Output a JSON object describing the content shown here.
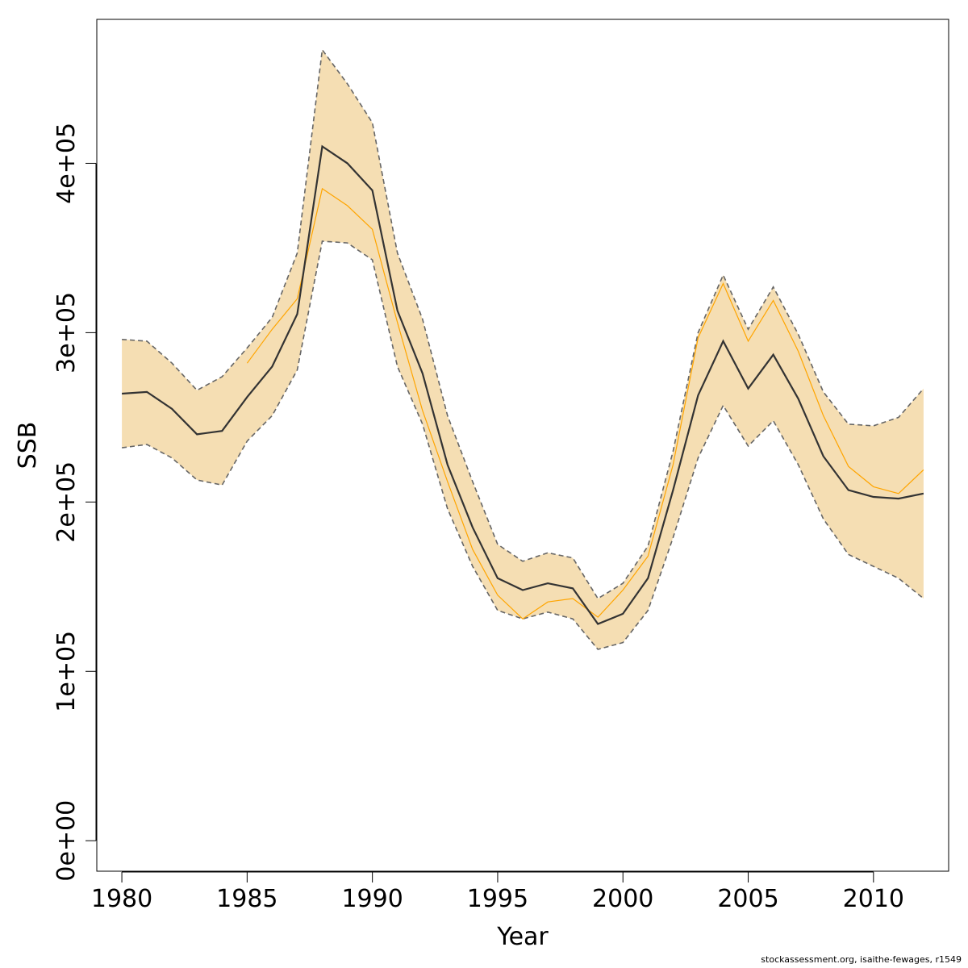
{
  "chart_data": {
    "type": "line",
    "title": "",
    "xlabel": "Year",
    "ylabel": "SSB",
    "xlim": [
      1979,
      2013
    ],
    "ylim": [
      -18000,
      485000
    ],
    "x_ticks": [
      1980,
      1985,
      1990,
      1995,
      2000,
      2005,
      2010
    ],
    "y_ticks": [
      0,
      100000,
      200000,
      300000,
      400000
    ],
    "y_tick_labels": [
      "0e+00",
      "1e+05",
      "2e+05",
      "3e+05",
      "4e+05"
    ],
    "grid": false,
    "years": [
      1980,
      1981,
      1982,
      1983,
      1984,
      1985,
      1986,
      1987,
      1988,
      1989,
      1990,
      1991,
      1992,
      1993,
      1994,
      1995,
      1996,
      1997,
      1998,
      1999,
      2000,
      2001,
      2002,
      2003,
      2004,
      2005,
      2006,
      2007,
      2008,
      2009,
      2010,
      2011,
      2012
    ],
    "series": [
      {
        "role": "estimate",
        "color": "#333333",
        "values": [
          264000,
          265000,
          255000,
          240000,
          242000,
          262000,
          280000,
          311000,
          410000,
          400000,
          384000,
          313000,
          276000,
          222000,
          185000,
          155000,
          148000,
          152000,
          149000,
          128000,
          134000,
          155000,
          207000,
          263000,
          295000,
          267000,
          287000,
          261000,
          227000,
          207000,
          203000,
          202000,
          205000
        ]
      },
      {
        "role": "upper",
        "color": "#666666",
        "values": [
          296000,
          295000,
          282000,
          266000,
          274000,
          291000,
          309000,
          347000,
          467000,
          447000,
          424000,
          347000,
          308000,
          251000,
          212000,
          175000,
          165000,
          170000,
          167000,
          143000,
          152000,
          174000,
          230000,
          300000,
          334000,
          302000,
          327000,
          299000,
          265000,
          246000,
          245000,
          250000,
          267000
        ]
      },
      {
        "role": "lower",
        "color": "#666666",
        "values": [
          232000,
          234000,
          226000,
          213000,
          210000,
          236000,
          251000,
          278000,
          354000,
          353000,
          343000,
          280000,
          246000,
          196000,
          162000,
          136000,
          131000,
          135000,
          131000,
          113000,
          117000,
          136000,
          179000,
          226000,
          257000,
          233000,
          248000,
          222000,
          190000,
          169000,
          162000,
          155000,
          143000
        ]
      },
      {
        "role": "previous",
        "color": "#ffa500",
        "values": [
          null,
          null,
          null,
          null,
          null,
          282000,
          302000,
          320000,
          385000,
          375000,
          361000,
          306000,
          254000,
          212000,
          172000,
          145000,
          131000,
          141000,
          143000,
          132000,
          148000,
          168000,
          222000,
          297000,
          329000,
          295000,
          319000,
          289000,
          251000,
          221000,
          209000,
          205000,
          219000
        ]
      }
    ],
    "band_color": "#f5deb3",
    "credit": "stockassessment.org, isaithe-fewages, r1549"
  }
}
